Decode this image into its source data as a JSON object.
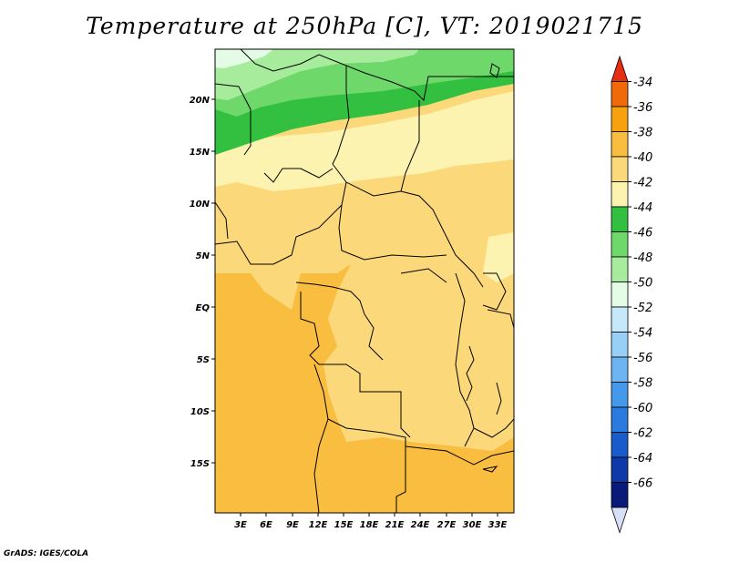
{
  "title": "Temperature at 250hPa [C], VT: 2019021715",
  "credit": "GrADS: IGES/COLA",
  "map": {
    "lat_labels": [
      "20N",
      "15N",
      "10N",
      "5N",
      "EQ",
      "5S",
      "10S",
      "15S"
    ],
    "lon_labels": [
      "3E",
      "6E",
      "9E",
      "12E",
      "15E",
      "18E",
      "21E",
      "24E",
      "27E",
      "30E",
      "33E"
    ]
  },
  "colorbar": {
    "labels": [
      "-34",
      "-36",
      "-38",
      "-40",
      "-42",
      "-44",
      "-46",
      "-48",
      "-50",
      "-52",
      "-54",
      "-56",
      "-58",
      "-60",
      "-62",
      "-64",
      "-66"
    ],
    "colors": [
      "#e62e14",
      "#f06a0a",
      "#f7a10f",
      "#f9bd3f",
      "#fbd97a",
      "#fdf3b0",
      "#33c040",
      "#6fd86a",
      "#a6ec9c",
      "#e4fbe6",
      "#c6e8fb",
      "#98cff6",
      "#6db5f2",
      "#4599eb",
      "#2a7ae0",
      "#1a5bcc",
      "#0f38a8",
      "#0a1a78",
      "#d8e0f8"
    ]
  }
}
